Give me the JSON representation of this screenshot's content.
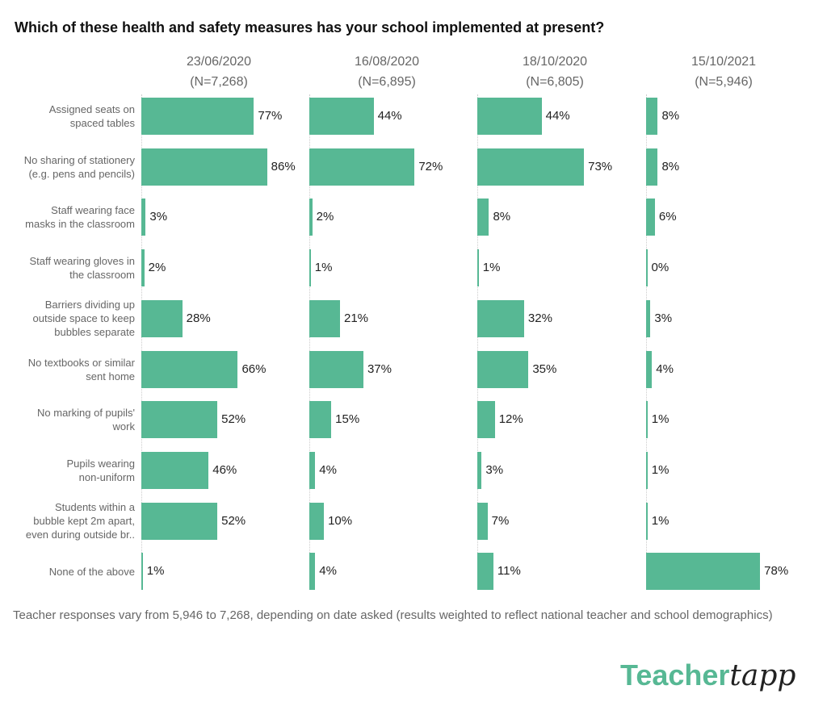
{
  "chart_data": {
    "type": "bar",
    "orientation": "horizontal",
    "title": "Which of these health and safety measures has your school implemented at present?",
    "categories": [
      [
        "Assigned seats on",
        "spaced tables"
      ],
      [
        "No sharing of stationery",
        "(e.g. pens and pencils)"
      ],
      [
        "Staff wearing face",
        "masks in the classroom"
      ],
      [
        "Staff wearing gloves in",
        "the classroom"
      ],
      [
        "Barriers dividing up",
        "outside space to keep",
        "bubbles separate"
      ],
      [
        "No textbooks or similar",
        "sent home"
      ],
      [
        "No marking of pupils'",
        "work"
      ],
      [
        "Pupils wearing",
        "non-uniform"
      ],
      [
        "Students within a",
        "bubble kept 2m apart,",
        "even during outside br.."
      ],
      [
        "None of the above"
      ]
    ],
    "series": [
      {
        "name": "23/06/2020",
        "n": "(N=7,268)",
        "values": [
          77,
          86,
          3,
          2,
          28,
          66,
          52,
          46,
          52,
          1
        ]
      },
      {
        "name": "16/08/2020",
        "n": "(N=6,895)",
        "values": [
          44,
          72,
          2,
          1,
          21,
          37,
          15,
          4,
          10,
          4
        ]
      },
      {
        "name": "18/10/2020",
        "n": "(N=6,805)",
        "values": [
          44,
          73,
          8,
          1,
          32,
          35,
          12,
          3,
          7,
          11
        ]
      },
      {
        "name": "15/10/2021",
        "n": "(N=5,946)",
        "values": [
          8,
          8,
          6,
          0,
          3,
          4,
          1,
          1,
          1,
          78
        ]
      }
    ],
    "xlim": [
      0,
      100
    ],
    "value_suffix": "%",
    "bar_color": "#57b894"
  },
  "footnote": "Teacher responses vary from 5,946 to 7,268, depending on date asked (results weighted to reflect national teacher and school demographics)",
  "logo": {
    "brand": "Teacher",
    "script": "tapp"
  }
}
